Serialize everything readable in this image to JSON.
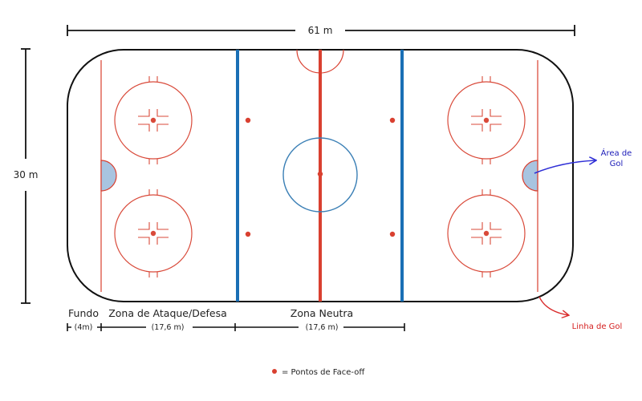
{
  "labels": {
    "width": "61 m",
    "height": "30 m",
    "fundo": "Fundo",
    "fundo_size": "(4m)",
    "ataque": "Zona de Ataque/Defesa",
    "ataque_size": "(17,6 m)",
    "neutra": "Zona Neutra",
    "neutra_size": "(17,6 m)",
    "area_gol_1": "Área de",
    "area_gol_2": "Gol",
    "linha_gol": "Linha de Gol",
    "legend": "= Pontos de Face-off"
  },
  "colors": {
    "boards": "#111111",
    "red_line": "#d94030",
    "blue_line": "#1a6fb5",
    "circle_red": "#d94a3a",
    "center_circle": "#3a7fb5",
    "crease_fill": "#a8c4e0",
    "arrow_blue": "#2f2fd6",
    "arrow_red": "#d92a2a",
    "label_blue": "#1b1bb8",
    "label_red": "#d41e1e"
  }
}
